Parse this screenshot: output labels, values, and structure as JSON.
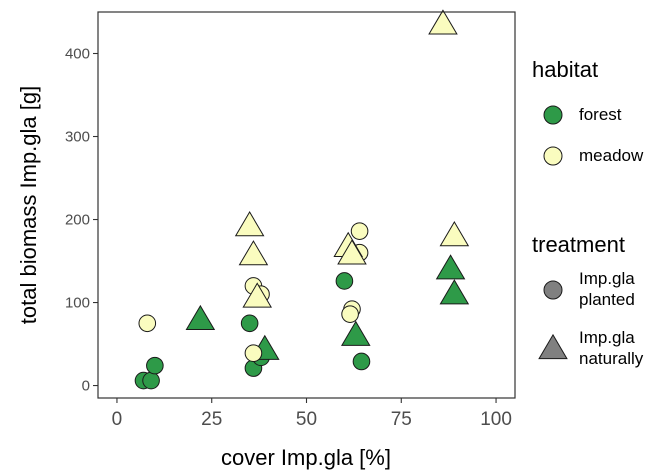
{
  "chart_data": {
    "type": "scatter",
    "xlabel": "cover Imp.gla [%]",
    "ylabel": "total biomass Imp.gla [g]",
    "xlim": [
      -5,
      105
    ],
    "ylim": [
      -15,
      450
    ],
    "xticks": [
      0,
      25,
      50,
      75,
      100
    ],
    "yticks": [
      0,
      100,
      200,
      300,
      400
    ],
    "xtick_labels": [
      "0",
      "25",
      "50",
      "75",
      "100"
    ],
    "ytick_labels": [
      "0",
      "100",
      "200",
      "300",
      "400"
    ],
    "grid": false,
    "legend_position": "right",
    "legends": [
      {
        "title": "habitat",
        "entries": [
          {
            "label": "forest",
            "color": "#2e9a48"
          },
          {
            "label": "meadow",
            "color": "#fafcbf"
          }
        ]
      },
      {
        "title": "treatment",
        "entries": [
          {
            "label_lines": [
              "Imp.gla",
              "planted"
            ],
            "shape": "circle"
          },
          {
            "label_lines": [
              "Imp.gla",
              "naturally"
            ],
            "shape": "triangle"
          }
        ]
      }
    ],
    "colors": {
      "forest": "#2e9a48",
      "meadow": "#fafcbf",
      "legend_shape": "#808080"
    },
    "points": [
      {
        "x": 7,
        "y": 6,
        "habitat": "forest",
        "treatment": "planted"
      },
      {
        "x": 9,
        "y": 6,
        "habitat": "forest",
        "treatment": "planted"
      },
      {
        "x": 10,
        "y": 24,
        "habitat": "forest",
        "treatment": "planted"
      },
      {
        "x": 35,
        "y": 75,
        "habitat": "forest",
        "treatment": "planted"
      },
      {
        "x": 36,
        "y": 21,
        "habitat": "forest",
        "treatment": "planted"
      },
      {
        "x": 38,
        "y": 34,
        "habitat": "forest",
        "treatment": "planted"
      },
      {
        "x": 60,
        "y": 126,
        "habitat": "forest",
        "treatment": "planted"
      },
      {
        "x": 64.5,
        "y": 29,
        "habitat": "forest",
        "treatment": "planted"
      },
      {
        "x": 22,
        "y": 79,
        "habitat": "forest",
        "treatment": "naturally"
      },
      {
        "x": 39,
        "y": 43,
        "habitat": "forest",
        "treatment": "naturally"
      },
      {
        "x": 63,
        "y": 60,
        "habitat": "forest",
        "treatment": "naturally"
      },
      {
        "x": 88,
        "y": 140,
        "habitat": "forest",
        "treatment": "naturally"
      },
      {
        "x": 89,
        "y": 110,
        "habitat": "forest",
        "treatment": "naturally"
      },
      {
        "x": 8,
        "y": 75,
        "habitat": "meadow",
        "treatment": "planted"
      },
      {
        "x": 36,
        "y": 120,
        "habitat": "meadow",
        "treatment": "planted"
      },
      {
        "x": 38,
        "y": 110,
        "habitat": "meadow",
        "treatment": "planted"
      },
      {
        "x": 36,
        "y": 39,
        "habitat": "meadow",
        "treatment": "planted"
      },
      {
        "x": 62,
        "y": 92,
        "habitat": "meadow",
        "treatment": "planted"
      },
      {
        "x": 61.5,
        "y": 86,
        "habitat": "meadow",
        "treatment": "planted"
      },
      {
        "x": 64,
        "y": 186,
        "habitat": "meadow",
        "treatment": "planted"
      },
      {
        "x": 64,
        "y": 160,
        "habitat": "meadow",
        "treatment": "planted"
      },
      {
        "x": 35,
        "y": 192,
        "habitat": "meadow",
        "treatment": "naturally"
      },
      {
        "x": 36,
        "y": 157,
        "habitat": "meadow",
        "treatment": "naturally"
      },
      {
        "x": 37,
        "y": 106,
        "habitat": "meadow",
        "treatment": "naturally"
      },
      {
        "x": 61,
        "y": 167,
        "habitat": "meadow",
        "treatment": "naturally"
      },
      {
        "x": 62,
        "y": 158,
        "habitat": "meadow",
        "treatment": "naturally"
      },
      {
        "x": 86,
        "y": 435,
        "habitat": "meadow",
        "treatment": "naturally"
      },
      {
        "x": 89,
        "y": 180,
        "habitat": "meadow",
        "treatment": "naturally"
      }
    ]
  }
}
